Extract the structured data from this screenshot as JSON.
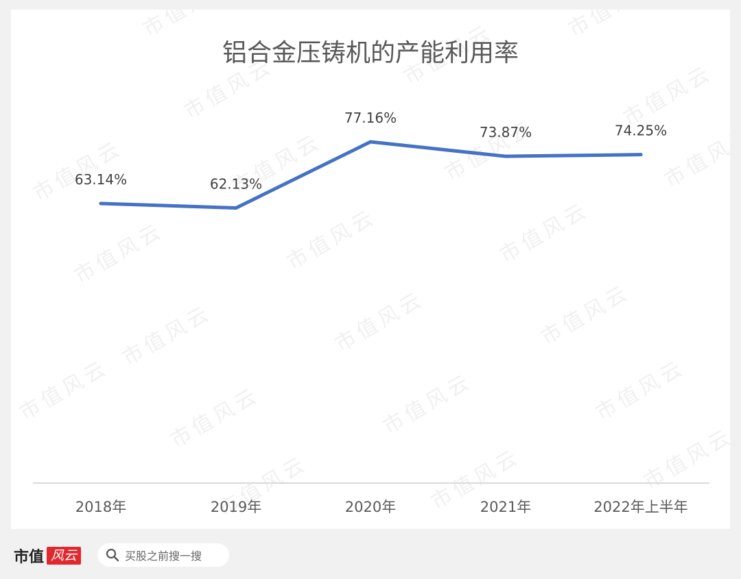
{
  "chart_data": {
    "type": "line",
    "title": "铝合金压铸机的产能利用率",
    "categories": [
      "2018年",
      "2019年",
      "2020年",
      "2021年",
      "2022年上半年"
    ],
    "series": [
      {
        "values": [
          63.14,
          62.13,
          77.16,
          73.87,
          74.25
        ]
      }
    ],
    "data_labels": [
      "63.14%",
      "62.13%",
      "77.16%",
      "73.87%",
      "74.25%"
    ],
    "ylim": [
      0,
      100
    ],
    "grid": false,
    "legend": "none",
    "line_color": "#4472c4"
  },
  "watermark": {
    "text": "市值风云"
  },
  "footer": {
    "logo_text": "市值",
    "logo_badge": "风云",
    "search_placeholder": "买股之前搜一搜"
  }
}
